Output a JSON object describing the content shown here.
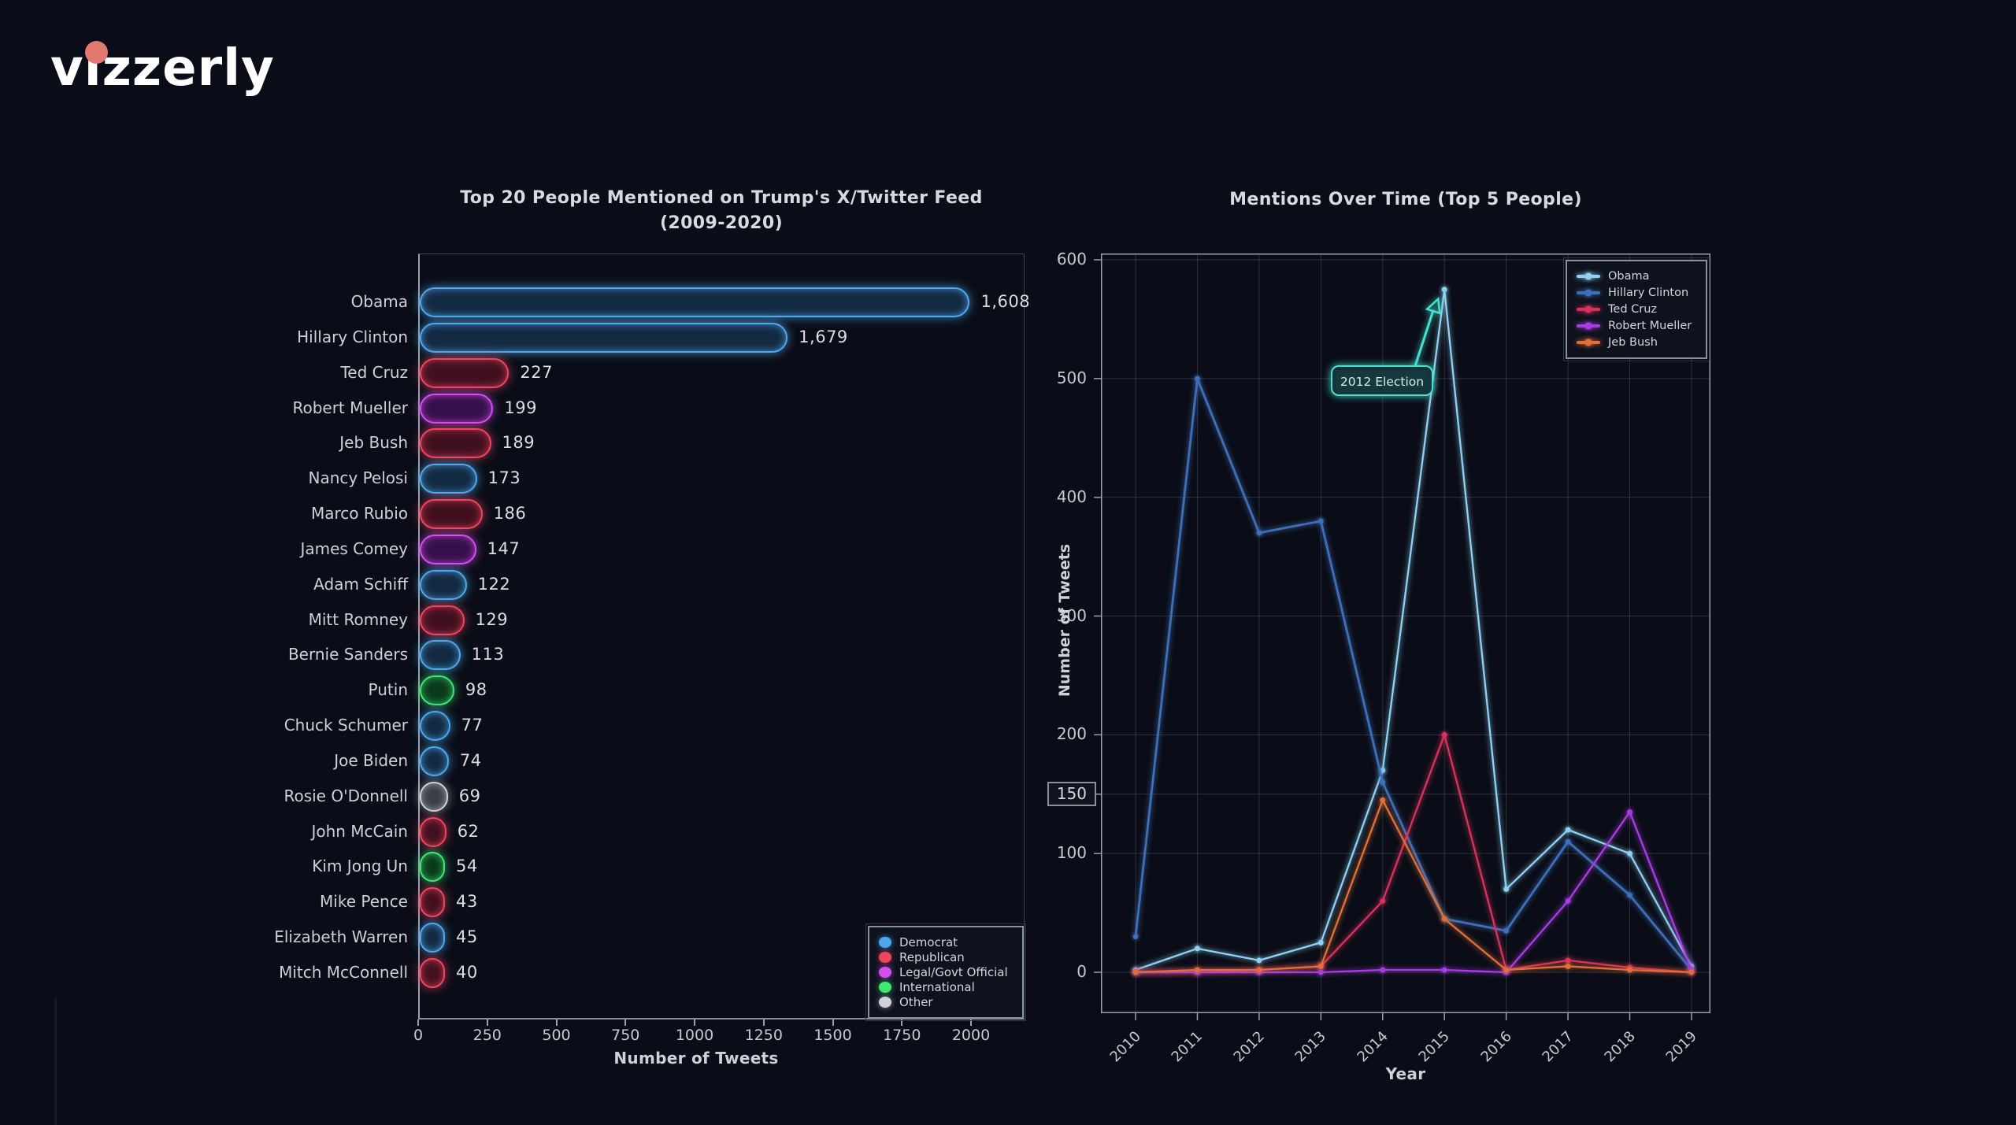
{
  "logo": {
    "text": "vizzerly",
    "dot_color": "#e2796f"
  },
  "palette": {
    "democrat": {
      "stroke": "#4fa8ec",
      "fill": "#132a42",
      "glow": "rgba(79,168,236,0.75)"
    },
    "republican": {
      "stroke": "#ef4560",
      "fill": "#41101f",
      "glow": "rgba(239,69,96,0.70)"
    },
    "legal": {
      "stroke": "#d44ef0",
      "fill": "#36104a",
      "glow": "rgba(212,78,240,0.70)"
    },
    "international": {
      "stroke": "#3de873",
      "fill": "#0b3a1c",
      "glow": "rgba(61,232,115,0.70)"
    },
    "other": {
      "stroke": "#cfd2d6",
      "fill": "#3a3f47",
      "glow": "rgba(207,210,214,0.60)"
    }
  },
  "chart_data": [
    {
      "type": "bar",
      "title_line1": "Top 20 People Mentioned on Trump's X/Twitter Feed",
      "title_line2": "(2009-2020)",
      "xlabel": "Number of Tweets",
      "x_axis_max": 2000,
      "x_ticks": [
        0,
        250,
        500,
        750,
        1000,
        1250,
        1500,
        1750,
        2000
      ],
      "grid": false,
      "legend_position": "lower right",
      "people": [
        {
          "name": "Obama",
          "value_label": "1,608",
          "value": 1608,
          "group": "democrat",
          "visual": 1990
        },
        {
          "name": "Hillary Clinton",
          "value_label": "1,679",
          "value": 1679,
          "group": "democrat",
          "visual": 1331
        },
        {
          "name": "Ted Cruz",
          "value_label": "227",
          "value": 227,
          "group": "republican",
          "visual": 323
        },
        {
          "name": "Robert Mueller",
          "value_label": "199",
          "value": 199,
          "group": "legal",
          "visual": 266
        },
        {
          "name": "Jeb Bush",
          "value_label": "189",
          "value": 189,
          "group": "republican",
          "visual": 258
        },
        {
          "name": "Nancy Pelosi",
          "value_label": "173",
          "value": 173,
          "group": "democrat",
          "visual": 207
        },
        {
          "name": "Marco Rubio",
          "value_label": "186",
          "value": 186,
          "group": "republican",
          "visual": 227
        },
        {
          "name": "James Comey",
          "value_label": "147",
          "value": 147,
          "group": "legal",
          "visual": 204
        },
        {
          "name": "Adam Schiff",
          "value_label": "122",
          "value": 122,
          "group": "democrat",
          "visual": 170
        },
        {
          "name": "Mitt Romney",
          "value_label": "129",
          "value": 129,
          "group": "republican",
          "visual": 161
        },
        {
          "name": "Bernie Sanders",
          "value_label": "113",
          "value": 113,
          "group": "democrat",
          "visual": 147
        },
        {
          "name": "Putin",
          "value_label": "98",
          "value": 98,
          "group": "international",
          "visual": 125
        },
        {
          "name": "Chuck Schumer",
          "value_label": "77",
          "value": 77,
          "group": "democrat",
          "visual": 110
        },
        {
          "name": "Joe Biden",
          "value_label": "74",
          "value": 74,
          "group": "democrat",
          "visual": 105
        },
        {
          "name": "Rosie O'Donnell",
          "value_label": "69",
          "value": 69,
          "group": "other",
          "visual": 102
        },
        {
          "name": "John McCain",
          "value_label": "62",
          "value": 62,
          "group": "republican",
          "visual": 96
        },
        {
          "name": "Kim Jong Un",
          "value_label": "54",
          "value": 54,
          "group": "international",
          "visual": 88
        },
        {
          "name": "Mike Pence",
          "value_label": "43",
          "value": 43,
          "group": "republican",
          "visual": 77
        },
        {
          "name": "Elizabeth Warren",
          "value_label": "45",
          "value": 45,
          "group": "democrat",
          "visual": 74
        },
        {
          "name": "Mitch McConnell",
          "value_label": "40",
          "value": 40,
          "group": "republican",
          "visual": 65
        }
      ],
      "legend": [
        {
          "label": "Democrat",
          "group": "democrat"
        },
        {
          "label": "Republican",
          "group": "republican"
        },
        {
          "label": "Legal/Govt Official",
          "group": "legal"
        },
        {
          "label": "International",
          "group": "international"
        },
        {
          "label": "Other",
          "group": "other"
        }
      ]
    },
    {
      "type": "line",
      "title": "Mentions Over Time (Top 5 People)",
      "xlabel": "Year",
      "ylabel": "Number of Tweets",
      "years": [
        2010,
        2011,
        2012,
        2013,
        2014,
        2015,
        2016,
        2017,
        2018,
        2019
      ],
      "ylim": [
        0,
        600
      ],
      "y_ticks": [
        {
          "label": "0",
          "value": 0
        },
        {
          "label": "100",
          "value": 100
        },
        {
          "label": "150",
          "value": 150,
          "boxed": true
        },
        {
          "label": "200",
          "value": 200
        },
        {
          "label": "300",
          "value": 300
        },
        {
          "label": "400",
          "value": 400
        },
        {
          "label": "500",
          "value": 500
        },
        {
          "label": "600",
          "value": 600
        }
      ],
      "grid": true,
      "legend_position": "upper right",
      "series": [
        {
          "name": "Obama",
          "color": "#8fd1f2",
          "values": [
            2,
            20,
            10,
            25,
            170,
            575,
            70,
            120,
            100,
            5
          ]
        },
        {
          "name": "Hillary Clinton",
          "color": "#3f6fb8",
          "values": [
            30,
            500,
            370,
            380,
            160,
            45,
            35,
            110,
            65,
            2
          ]
        },
        {
          "name": "Ted Cruz",
          "color": "#d9325e",
          "values": [
            0,
            0,
            2,
            5,
            60,
            200,
            2,
            10,
            4,
            0
          ]
        },
        {
          "name": "Robert Mueller",
          "color": "#a93ce3",
          "values": [
            0,
            0,
            0,
            0,
            2,
            2,
            0,
            60,
            135,
            2
          ]
        },
        {
          "name": "Jeb Bush",
          "color": "#e07038",
          "values": [
            0,
            2,
            2,
            5,
            145,
            45,
            2,
            5,
            2,
            0
          ]
        }
      ],
      "annotation": {
        "text": "2012 Election",
        "color": "#49e0cf",
        "target_year": 2015,
        "target_value": 575
      }
    }
  ]
}
